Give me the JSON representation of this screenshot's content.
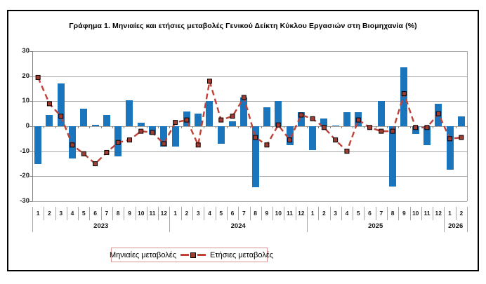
{
  "chart_data": {
    "type": "bar+line",
    "title": "Γράφημα 1. Μηνιαίες και ετήσιες μεταβολές  Γενικού Δείκτη Κύκλου Εργασιών στη Βιομηχανία (%)",
    "ylim": [
      -30,
      30
    ],
    "ytick_step": 10,
    "yticks": [
      30,
      20,
      10,
      0,
      -10,
      -20,
      -30
    ],
    "grid": true,
    "legend_position": "bottom",
    "month_labels": [
      "1",
      "2",
      "3",
      "4",
      "5",
      "6",
      "7",
      "8",
      "9",
      "10",
      "11",
      "12",
      "1",
      "2",
      "3",
      "4",
      "5",
      "6",
      "7",
      "8",
      "9",
      "10",
      "11",
      "12",
      "1",
      "2",
      "3",
      "4",
      "5",
      "6",
      "7",
      "8",
      "9",
      "10",
      "11",
      "12",
      "1",
      "2"
    ],
    "year_groups": [
      {
        "label": "2023",
        "count": 12
      },
      {
        "label": "2024",
        "count": 12
      },
      {
        "label": "2025",
        "count": 12
      },
      {
        "label": "2026",
        "count": 2
      }
    ],
    "series": [
      {
        "name": "Μηνιαίες μεταβολές",
        "type": "bar",
        "color": "#1b75bc",
        "values": [
          -15,
          4.5,
          17,
          -13,
          7,
          0.5,
          4.5,
          -12,
          10.5,
          1.5,
          -3.5,
          -8,
          -8,
          6,
          5,
          10,
          -7,
          2,
          11.5,
          -24.5,
          7.5,
          10,
          -7.5,
          5.5,
          -9.5,
          3,
          0.4,
          5.5,
          5.5,
          0,
          10,
          -24,
          23.5,
          -3,
          -7.5,
          9,
          -17.5,
          4
        ]
      },
      {
        "name": "Ετήσιες μεταβολές",
        "type": "line",
        "line_style": "dashed",
        "marker": "square",
        "color": "#bf4238",
        "marker_color": "#a13c32",
        "values": [
          19.5,
          9,
          4,
          -7.5,
          -11,
          -15,
          -10.5,
          -6.5,
          -5.5,
          -2,
          -2.5,
          -7,
          1.5,
          2.5,
          -7.5,
          18,
          2.5,
          4,
          11.5,
          -4.5,
          -7.5,
          0.5,
          -5.5,
          4.5,
          3,
          -0.5,
          -5.5,
          -10,
          2.5,
          -0.5,
          -2,
          -2,
          13,
          -0.5,
          -0.5,
          5,
          -5,
          -4.5
        ]
      }
    ]
  },
  "colors": {
    "legend_border": "#d99694",
    "grid": "#a6a6a6",
    "axis": "#808080"
  }
}
